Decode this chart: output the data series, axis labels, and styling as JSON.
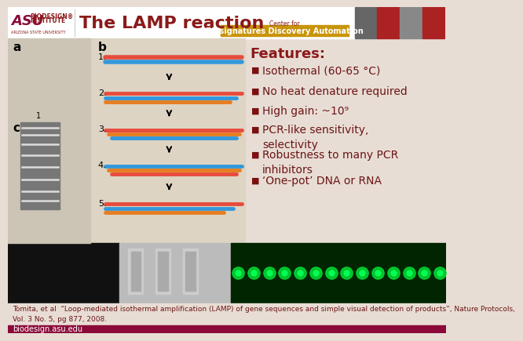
{
  "title": "The LAMP reaction",
  "features_title": "Features:",
  "features": [
    "Isothermal (60-65 °C)",
    "No heat denature required",
    "High gain: ~10⁹",
    "PCR-like sensitivity,\nselectivity",
    "Robustness to many PCR\ninhibitors",
    "‘One-pot’ DNA or RNA"
  ],
  "citation": "Tomita, et al  “Loop-mediated isothermal amplification (LAMP) of gene sequences and simple visual detection of products”, Nature Protocols,\nVol. 3 No. 5, pg 877, 2008.",
  "footer_text": "biodesign.asu.edu",
  "bg_color": "#e8ddd5",
  "white": "#ffffff",
  "dark_red": "#8b1a1a",
  "maroon": "#8b0a3a",
  "gold": "#c8940a",
  "title_color": "#8b1a1a",
  "bullet_color": "#7a1010",
  "text_color": "#6b1515",
  "citation_color": "#6b1515",
  "header_right_colors": [
    "#666666",
    "#aa2222",
    "#888888",
    "#aa2222"
  ],
  "bottom_left_color": "#111111",
  "bottom_mid_color": "#aaaaaa",
  "bottom_right_color": "#002200",
  "gel_bg": "#888888"
}
